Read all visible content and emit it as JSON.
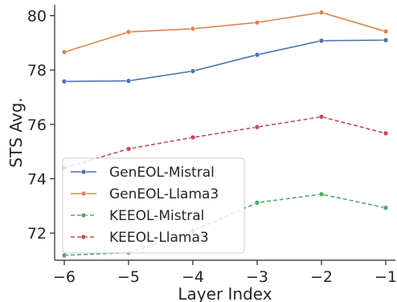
{
  "chart_data": {
    "type": "line",
    "title": "",
    "xlabel": "Layer Index",
    "ylabel": "STS Avg.",
    "x": [
      -6,
      -5,
      -4,
      -3,
      -2,
      -1
    ],
    "xlim": [
      -6.15,
      -0.85
    ],
    "ylim": [
      71.0,
      80.4
    ],
    "xticks": [
      -6,
      -5,
      -4,
      -3,
      -2,
      -1
    ],
    "xtick_labels": [
      "−6",
      "−5",
      "−4",
      "−3",
      "−2",
      "−1"
    ],
    "yticks": [
      72,
      74,
      76,
      78,
      80
    ],
    "ytick_labels": [
      "72",
      "74",
      "76",
      "78",
      "80"
    ],
    "grid": false,
    "legend_position": "lower-left",
    "series": [
      {
        "name": "GenEOL-Mistral",
        "color": "#4c72b0",
        "dash": "solid",
        "values": [
          77.58,
          77.6,
          77.96,
          78.56,
          79.08,
          79.1
        ]
      },
      {
        "name": "GenEOL-Llama3",
        "color": "#dd8452",
        "dash": "solid",
        "values": [
          78.66,
          79.4,
          79.52,
          79.75,
          80.12,
          79.42
        ]
      },
      {
        "name": "KEEOL-Mistral",
        "color": "#55a868",
        "dash": "dashed",
        "values": [
          71.18,
          71.28,
          72.08,
          73.12,
          73.43,
          72.93
        ]
      },
      {
        "name": "KEEOL-Llama3",
        "color": "#c44e52",
        "dash": "dashed",
        "values": [
          74.4,
          75.1,
          75.52,
          75.9,
          76.28,
          75.67
        ]
      }
    ]
  }
}
